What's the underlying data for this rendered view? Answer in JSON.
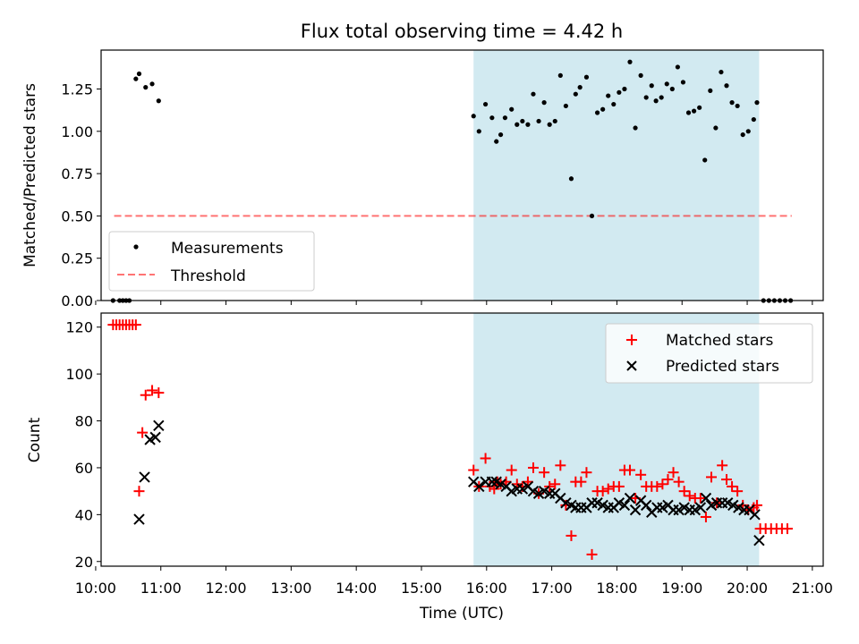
{
  "title": "Flux total observing time = 4.42 h",
  "colors": {
    "shade": "#add8e6",
    "measurement": "#000000",
    "threshold": "#ff0000",
    "matched": "#ff0000",
    "predicted": "#000000"
  },
  "chart_data": [
    {
      "type": "scatter",
      "ylabel": "Matched/Predicted stars",
      "xlim": [
        "10:05",
        "21:10"
      ],
      "ylim": [
        0,
        1.48
      ],
      "yticks": [
        "0.00",
        "0.25",
        "0.50",
        "0.75",
        "1.00",
        "1.25"
      ],
      "shaded_interval": [
        "15:48",
        "20:11"
      ],
      "legend": {
        "placement": "lower-left",
        "entries": [
          "Measurements",
          "Threshold"
        ]
      },
      "threshold": {
        "name": "Threshold",
        "x": [
          "10:17",
          "20:41"
        ],
        "y": 0.5
      },
      "measurements": {
        "name": "Measurements",
        "points": [
          [
            "10:16",
            0
          ],
          [
            "10:22",
            0
          ],
          [
            "10:25",
            0
          ],
          [
            "10:28",
            0
          ],
          [
            "10:31",
            0
          ],
          [
            "10:37",
            1.31
          ],
          [
            "10:40",
            1.34
          ],
          [
            "10:46",
            1.26
          ],
          [
            "10:52",
            1.28
          ],
          [
            "10:58",
            1.18
          ],
          [
            "15:48",
            1.09
          ],
          [
            "15:53",
            1.0
          ],
          [
            "15:59",
            1.16
          ],
          [
            "16:05",
            1.08
          ],
          [
            "16:09",
            0.94
          ],
          [
            "16:13",
            0.98
          ],
          [
            "16:17",
            1.08
          ],
          [
            "16:23",
            1.13
          ],
          [
            "16:28",
            1.04
          ],
          [
            "16:33",
            1.06
          ],
          [
            "16:38",
            1.04
          ],
          [
            "16:43",
            1.22
          ],
          [
            "16:48",
            1.06
          ],
          [
            "16:53",
            1.17
          ],
          [
            "16:58",
            1.04
          ],
          [
            "17:03",
            1.06
          ],
          [
            "17:08",
            1.33
          ],
          [
            "17:13",
            1.15
          ],
          [
            "17:18",
            0.72
          ],
          [
            "17:22",
            1.22
          ],
          [
            "17:26",
            1.26
          ],
          [
            "17:32",
            1.32
          ],
          [
            "17:37",
            0.5
          ],
          [
            "17:42",
            1.11
          ],
          [
            "17:47",
            1.13
          ],
          [
            "17:52",
            1.21
          ],
          [
            "17:57",
            1.16
          ],
          [
            "18:02",
            1.23
          ],
          [
            "18:07",
            1.25
          ],
          [
            "18:12",
            1.41
          ],
          [
            "18:17",
            1.02
          ],
          [
            "18:22",
            1.33
          ],
          [
            "18:27",
            1.2
          ],
          [
            "18:32",
            1.27
          ],
          [
            "18:36",
            1.18
          ],
          [
            "18:41",
            1.2
          ],
          [
            "18:46",
            1.28
          ],
          [
            "18:51",
            1.25
          ],
          [
            "18:56",
            1.38
          ],
          [
            "19:01",
            1.29
          ],
          [
            "19:06",
            1.11
          ],
          [
            "19:11",
            1.12
          ],
          [
            "19:16",
            1.14
          ],
          [
            "19:21",
            0.83
          ],
          [
            "19:26",
            1.24
          ],
          [
            "19:31",
            1.02
          ],
          [
            "19:36",
            1.35
          ],
          [
            "19:41",
            1.27
          ],
          [
            "19:46",
            1.17
          ],
          [
            "19:51",
            1.15
          ],
          [
            "19:56",
            0.98
          ],
          [
            "20:01",
            1.0
          ],
          [
            "20:06",
            1.07
          ],
          [
            "20:09",
            1.17
          ],
          [
            "20:15",
            0
          ],
          [
            "20:20",
            0
          ],
          [
            "20:25",
            0
          ],
          [
            "20:30",
            0
          ],
          [
            "20:35",
            0
          ],
          [
            "20:40",
            0
          ]
        ]
      }
    },
    {
      "type": "scatter",
      "xlabel": "Time (UTC)",
      "ylabel": "Count",
      "xlim": [
        "10:05",
        "21:10"
      ],
      "ylim": [
        18,
        126
      ],
      "yticks": [
        "20",
        "40",
        "60",
        "80",
        "100",
        "120"
      ],
      "xticks": [
        "10:00",
        "11:00",
        "12:00",
        "13:00",
        "14:00",
        "15:00",
        "16:00",
        "17:00",
        "18:00",
        "19:00",
        "20:00",
        "21:00"
      ],
      "shaded_interval": [
        "15:48",
        "20:11"
      ],
      "legend": {
        "placement": "top-right",
        "entries": [
          "Matched stars",
          "Predicted stars"
        ]
      },
      "series": [
        {
          "name": "Matched stars",
          "marker": "+",
          "points": [
            [
              "10:16",
              121
            ],
            [
              "10:19",
              121
            ],
            [
              "10:22",
              121
            ],
            [
              "10:25",
              121
            ],
            [
              "10:28",
              121
            ],
            [
              "10:31",
              121
            ],
            [
              "10:34",
              121
            ],
            [
              "10:37",
              121
            ],
            [
              "10:40",
              50
            ],
            [
              "10:43",
              75
            ],
            [
              "10:46",
              91
            ],
            [
              "10:52",
              93
            ],
            [
              "10:58",
              92
            ],
            [
              "15:48",
              59
            ],
            [
              "15:53",
              52
            ],
            [
              "15:59",
              64
            ],
            [
              "16:03",
              52
            ],
            [
              "16:07",
              51
            ],
            [
              "16:10",
              54
            ],
            [
              "16:13",
              53
            ],
            [
              "16:18",
              54
            ],
            [
              "16:23",
              59
            ],
            [
              "16:28",
              53
            ],
            [
              "16:33",
              52
            ],
            [
              "16:38",
              54
            ],
            [
              "16:43",
              60
            ],
            [
              "16:48",
              49
            ],
            [
              "16:53",
              58
            ],
            [
              "16:58",
              52
            ],
            [
              "17:03",
              53
            ],
            [
              "17:08",
              61
            ],
            [
              "17:13",
              44
            ],
            [
              "17:18",
              31
            ],
            [
              "17:22",
              54
            ],
            [
              "17:27",
              54
            ],
            [
              "17:32",
              58
            ],
            [
              "17:37",
              23
            ],
            [
              "17:42",
              50
            ],
            [
              "17:47",
              50
            ],
            [
              "17:52",
              51
            ],
            [
              "17:57",
              52
            ],
            [
              "18:02",
              52
            ],
            [
              "18:07",
              59
            ],
            [
              "18:12",
              59
            ],
            [
              "18:17",
              47
            ],
            [
              "18:22",
              57
            ],
            [
              "18:27",
              52
            ],
            [
              "18:32",
              52
            ],
            [
              "18:37",
              52
            ],
            [
              "18:42",
              53
            ],
            [
              "18:47",
              55
            ],
            [
              "18:52",
              58
            ],
            [
              "18:57",
              54
            ],
            [
              "19:02",
              50
            ],
            [
              "19:07",
              48
            ],
            [
              "19:12",
              47
            ],
            [
              "19:17",
              47
            ],
            [
              "19:22",
              39
            ],
            [
              "19:27",
              56
            ],
            [
              "19:32",
              45
            ],
            [
              "19:37",
              61
            ],
            [
              "19:41",
              55
            ],
            [
              "19:46",
              52
            ],
            [
              "19:51",
              50
            ],
            [
              "19:56",
              44
            ],
            [
              "20:01",
              42
            ],
            [
              "20:06",
              43
            ],
            [
              "20:09",
              44
            ],
            [
              "20:12",
              34
            ],
            [
              "20:17",
              34
            ],
            [
              "20:22",
              34
            ],
            [
              "20:27",
              34
            ],
            [
              "20:32",
              34
            ],
            [
              "20:37",
              34
            ]
          ]
        },
        {
          "name": "Predicted stars",
          "marker": "x",
          "points": [
            [
              "10:40",
              38
            ],
            [
              "10:45",
              56
            ],
            [
              "10:50",
              72
            ],
            [
              "10:55",
              73
            ],
            [
              "10:58",
              78
            ],
            [
              "15:48",
              54
            ],
            [
              "15:53",
              52
            ],
            [
              "15:59",
              54
            ],
            [
              "16:05",
              54
            ],
            [
              "16:09",
              54
            ],
            [
              "16:13",
              53
            ],
            [
              "16:18",
              52
            ],
            [
              "16:23",
              50
            ],
            [
              "16:28",
              51
            ],
            [
              "16:33",
              51
            ],
            [
              "16:38",
              52
            ],
            [
              "16:43",
              50
            ],
            [
              "16:48",
              49
            ],
            [
              "16:53",
              50
            ],
            [
              "16:58",
              49
            ],
            [
              "17:03",
              49
            ],
            [
              "17:08",
              47
            ],
            [
              "17:13",
              45
            ],
            [
              "17:18",
              44
            ],
            [
              "17:22",
              43
            ],
            [
              "17:27",
              43
            ],
            [
              "17:32",
              43
            ],
            [
              "17:37",
              45
            ],
            [
              "17:42",
              45
            ],
            [
              "17:47",
              44
            ],
            [
              "17:52",
              43
            ],
            [
              "17:57",
              43
            ],
            [
              "18:02",
              45
            ],
            [
              "18:07",
              44
            ],
            [
              "18:12",
              47
            ],
            [
              "18:17",
              42
            ],
            [
              "18:22",
              46
            ],
            [
              "18:27",
              44
            ],
            [
              "18:32",
              41
            ],
            [
              "18:37",
              43
            ],
            [
              "18:42",
              43
            ],
            [
              "18:47",
              44
            ],
            [
              "18:52",
              42
            ],
            [
              "18:57",
              42
            ],
            [
              "19:02",
              43
            ],
            [
              "19:07",
              42
            ],
            [
              "19:12",
              42
            ],
            [
              "19:17",
              43
            ],
            [
              "19:22",
              47
            ],
            [
              "19:27",
              44
            ],
            [
              "19:32",
              45
            ],
            [
              "19:37",
              45
            ],
            [
              "19:42",
              45
            ],
            [
              "19:47",
              44
            ],
            [
              "19:52",
              43
            ],
            [
              "19:57",
              42
            ],
            [
              "20:02",
              42
            ],
            [
              "20:07",
              40
            ],
            [
              "20:11",
              29
            ]
          ]
        }
      ]
    }
  ]
}
